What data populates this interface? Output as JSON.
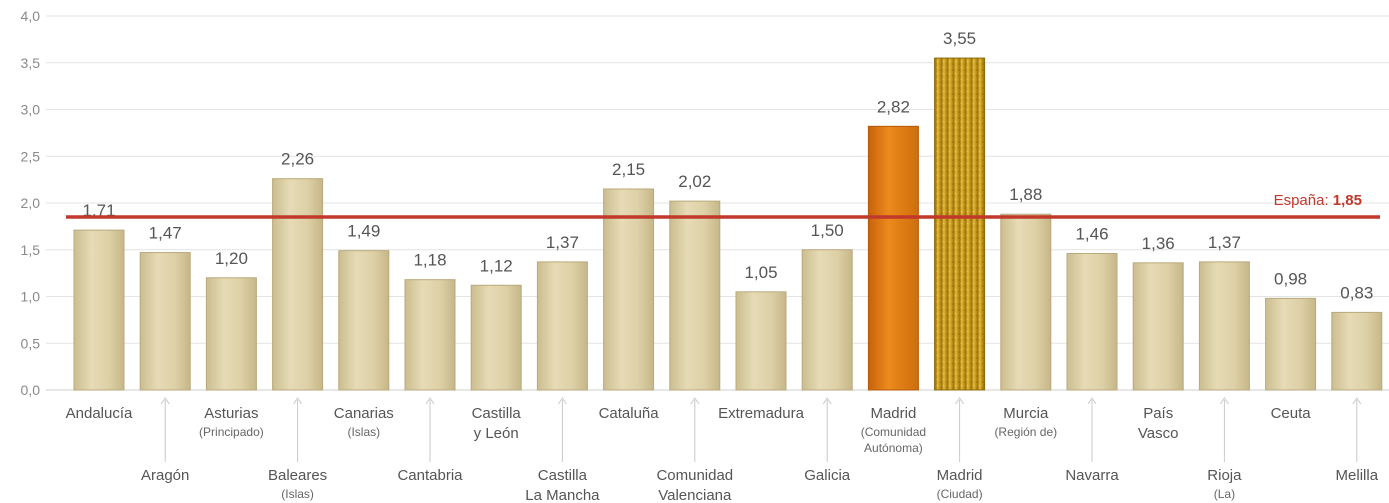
{
  "chart_data": {
    "type": "bar",
    "ylim": [
      0,
      4
    ],
    "yticks": [
      "0,0",
      "0,5",
      "1,0",
      "1,5",
      "2,0",
      "2,5",
      "3,0",
      "3,5",
      "4,0"
    ],
    "grid": true,
    "categories": [
      {
        "name": "Andalucía",
        "sub": "",
        "row": 0
      },
      {
        "name": "Aragón",
        "sub": "",
        "row": 1
      },
      {
        "name": "Asturias",
        "sub": "(Principado)",
        "row": 0
      },
      {
        "name": "Baleares",
        "sub": "(Islas)",
        "row": 1
      },
      {
        "name": "Canarias",
        "sub": "(Islas)",
        "row": 0
      },
      {
        "name": "Cantabria",
        "sub": "",
        "row": 1
      },
      {
        "name": "Castilla\ny León",
        "sub": "",
        "row": 0
      },
      {
        "name": "Castilla\nLa Mancha",
        "sub": "",
        "row": 1
      },
      {
        "name": "Cataluña",
        "sub": "",
        "row": 0
      },
      {
        "name": "Comunidad\nValenciana",
        "sub": "",
        "row": 1
      },
      {
        "name": "Extremadura",
        "sub": "",
        "row": 0
      },
      {
        "name": "Galicia",
        "sub": "",
        "row": 1
      },
      {
        "name": "Madrid",
        "sub": "(Comunidad\nAutónoma)",
        "row": 0
      },
      {
        "name": "Madrid",
        "sub": "(Ciudad)",
        "row": 1
      },
      {
        "name": "Murcia",
        "sub": "(Región de)",
        "row": 0
      },
      {
        "name": "Navarra",
        "sub": "",
        "row": 1
      },
      {
        "name": "País\nVasco",
        "sub": "",
        "row": 0
      },
      {
        "name": "Rioja",
        "sub": "(La)",
        "row": 1
      },
      {
        "name": "Ceuta",
        "sub": "",
        "row": 0
      },
      {
        "name": "Melilla",
        "sub": "",
        "row": 1
      }
    ],
    "values": [
      1.71,
      1.47,
      1.2,
      2.26,
      1.49,
      1.18,
      1.12,
      1.37,
      2.15,
      2.02,
      1.05,
      1.5,
      2.82,
      3.55,
      1.88,
      1.46,
      1.36,
      1.37,
      0.98,
      0.83
    ],
    "value_labels": [
      "1,71",
      "1,47",
      "1,20",
      "2,26",
      "1,49",
      "1,18",
      "1,12",
      "1,37",
      "2,15",
      "2,02",
      "1,05",
      "1,50",
      "2,82",
      "3,55",
      "1,88",
      "1,46",
      "1,36",
      "1,37",
      "0,98",
      "0,83"
    ],
    "highlight": {
      "12": "orange",
      "13": "gold"
    },
    "reference_line": {
      "value": 1.85,
      "label_prefix": "España: ",
      "label_value": "1,85"
    },
    "colors": {
      "bar": "#ddd0a6",
      "bar_edge": "#b9a97c",
      "orange": "#de7a10",
      "gold": "#c89a18",
      "reference": "#c0392b",
      "grid": "#e4e4e4"
    }
  }
}
